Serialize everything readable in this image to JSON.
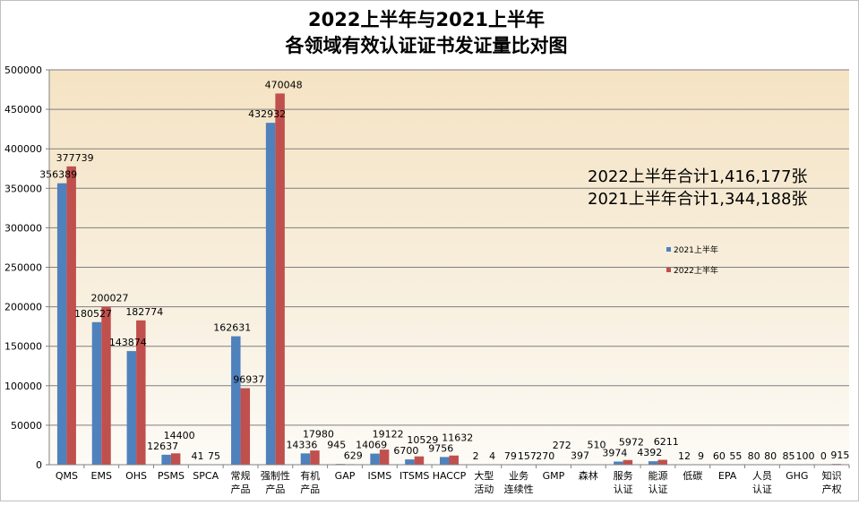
{
  "chart_data": {
    "type": "bar",
    "title_line1": "2022上半年与2021上半年",
    "title_line2": "各领域有效认证证书发证量比对图",
    "xlabel": "",
    "ylabel": "",
    "ylim": [
      0,
      500000
    ],
    "yticks": [
      0,
      50000,
      100000,
      150000,
      200000,
      250000,
      300000,
      350000,
      400000,
      450000,
      500000
    ],
    "grid": true,
    "legend_position": "right",
    "categories": [
      [
        "QMS"
      ],
      [
        "EMS"
      ],
      [
        "OHS"
      ],
      [
        "PSMS"
      ],
      [
        "SPCA"
      ],
      [
        "常规",
        "产品"
      ],
      [
        "强制性",
        "产品"
      ],
      [
        "有机",
        "产品"
      ],
      [
        "GAP"
      ],
      [
        "ISMS"
      ],
      [
        "ITSMS"
      ],
      [
        "HACCP"
      ],
      [
        "大型",
        "活动"
      ],
      [
        "业务",
        "连续性"
      ],
      [
        "GMP"
      ],
      [
        "森林"
      ],
      [
        "服务",
        "认证"
      ],
      [
        "能源",
        "认证"
      ],
      [
        "低碳"
      ],
      [
        "EPA"
      ],
      [
        "人员",
        "认证"
      ],
      [
        "GHG"
      ],
      [
        "知识",
        "产权"
      ]
    ],
    "series": [
      {
        "name": "2021上半年",
        "color": "#4F81BD",
        "values": [
          356389,
          180527,
          143874,
          12637,
          41,
          162631,
          432932,
          14336,
          945,
          14069,
          6700,
          9756,
          2,
          79,
          270,
          397,
          3974,
          4392,
          12,
          60,
          80,
          85,
          0
        ]
      },
      {
        "name": "2022上半年",
        "color": "#C0504D",
        "values": [
          377739,
          200027,
          182774,
          14400,
          75,
          96937,
          470048,
          17980,
          629,
          19122,
          10529,
          11632,
          4,
          157,
          272,
          510,
          5972,
          6211,
          9,
          55,
          80,
          100,
          915
        ]
      }
    ],
    "annotations": [
      "2022上半年合计1,416,177张",
      "2021上半年合计1,344,188张"
    ]
  }
}
